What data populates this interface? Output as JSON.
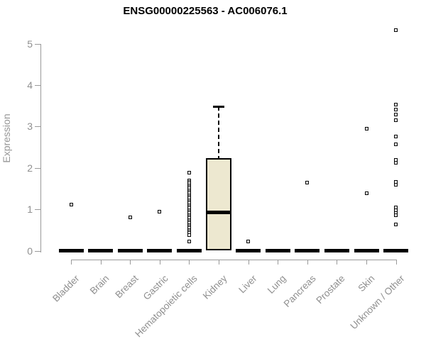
{
  "title": "ENSG00000225563 - AC006076.1",
  "chart_data": {
    "type": "boxplot",
    "title": "ENSG00000225563 - AC006076.1",
    "xlabel": "",
    "ylabel": "Expression",
    "ylim": [
      0,
      5.4
    ],
    "yticks": [
      0,
      1,
      2,
      3,
      4,
      5
    ],
    "grid": false,
    "legend": "none",
    "colors": {
      "box_fill": "#ede8d0",
      "box_border": "#000000",
      "axis": "#9a9a9a",
      "tick_text": "#8f8f8f",
      "title_text": "#000000"
    },
    "categories": [
      "Bladder",
      "Brain",
      "Breast",
      "Gastric",
      "Hematopoietic cells",
      "Kidney",
      "Liver",
      "Lung",
      "Pancreas",
      "Prostate",
      "Skin",
      "Unknown / Other"
    ],
    "boxes": [
      {
        "category": "Bladder",
        "whisker_low": 0,
        "q1": 0,
        "median": 0,
        "q3": 0,
        "whisker_high": 0,
        "outliers": [
          1.12
        ]
      },
      {
        "category": "Brain",
        "whisker_low": 0,
        "q1": 0,
        "median": 0,
        "q3": 0,
        "whisker_high": 0,
        "outliers": []
      },
      {
        "category": "Breast",
        "whisker_low": 0,
        "q1": 0,
        "median": 0,
        "q3": 0,
        "whisker_high": 0,
        "outliers": [
          0.8
        ]
      },
      {
        "category": "Gastric",
        "whisker_low": 0,
        "q1": 0,
        "median": 0,
        "q3": 0,
        "whisker_high": 0,
        "outliers": [
          0.95
        ]
      },
      {
        "category": "Hematopoietic cells",
        "whisker_low": 0,
        "q1": 0,
        "median": 0,
        "q3": 0,
        "whisker_high": 0,
        "outliers": [
          1.88,
          1.7,
          1.66,
          1.62,
          1.58,
          1.54,
          1.5,
          1.46,
          1.42,
          1.38,
          1.34,
          1.3,
          1.26,
          1.22,
          1.18,
          1.14,
          1.1,
          1.06,
          1.02,
          0.98,
          0.94,
          0.9,
          0.86,
          0.82,
          0.78,
          0.74,
          0.7,
          0.66,
          0.62,
          0.58,
          0.54,
          0.5,
          0.46,
          0.42,
          0.38,
          0.23
        ]
      },
      {
        "category": "Kidney",
        "whisker_low": 0,
        "q1": 0,
        "median": 0.93,
        "q3": 2.23,
        "whisker_high": 3.48,
        "outliers": []
      },
      {
        "category": "Liver",
        "whisker_low": 0,
        "q1": 0,
        "median": 0,
        "q3": 0,
        "whisker_high": 0,
        "outliers": [
          0.23
        ]
      },
      {
        "category": "Lung",
        "whisker_low": 0,
        "q1": 0,
        "median": 0,
        "q3": 0,
        "whisker_high": 0,
        "outliers": []
      },
      {
        "category": "Pancreas",
        "whisker_low": 0,
        "q1": 0,
        "median": 0,
        "q3": 0,
        "whisker_high": 0,
        "outliers": [
          1.65
        ]
      },
      {
        "category": "Prostate",
        "whisker_low": 0,
        "q1": 0,
        "median": 0,
        "q3": 0,
        "whisker_high": 0,
        "outliers": []
      },
      {
        "category": "Skin",
        "whisker_low": 0,
        "q1": 0,
        "median": 0,
        "q3": 0,
        "whisker_high": 0,
        "outliers": [
          2.95,
          1.39
        ]
      },
      {
        "category": "Unknown / Other",
        "whisker_low": 0,
        "q1": 0,
        "median": 0,
        "q3": 0,
        "whisker_high": 0,
        "outliers": [
          5.33,
          3.52,
          3.4,
          3.28,
          3.15,
          2.75,
          2.56,
          2.2,
          2.13,
          1.66,
          1.6,
          1.05,
          0.98,
          0.91,
          0.85,
          0.63
        ]
      }
    ]
  }
}
